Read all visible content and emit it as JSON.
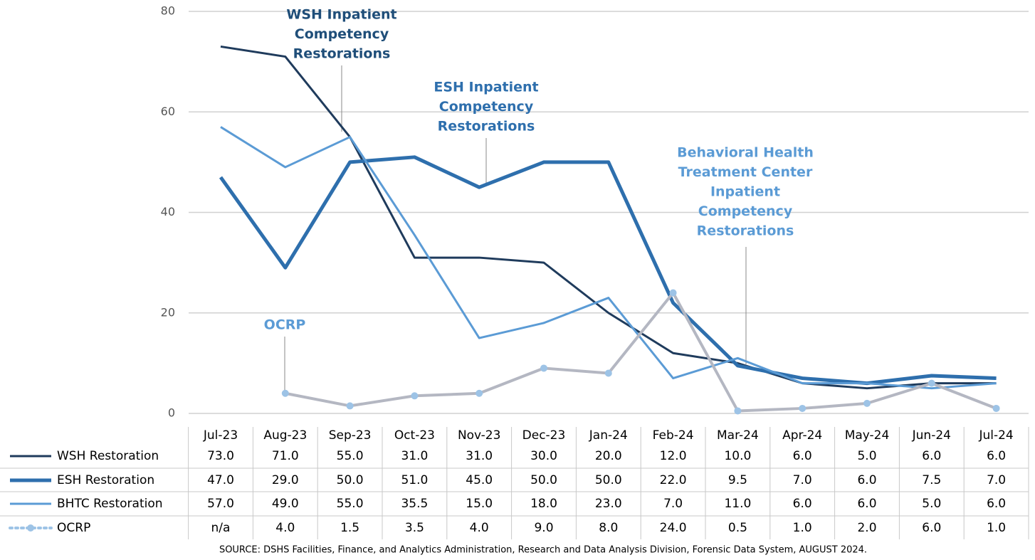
{
  "chart_data": {
    "type": "line",
    "source": "SOURCE: DSHS Facilities, Finance, and Analytics Administration, Research and Data Analysis Division, Forensic Data System, AUGUST 2024.",
    "categories": [
      "Jul-23",
      "Aug-23",
      "Sep-23",
      "Oct-23",
      "Nov-23",
      "Dec-23",
      "Jan-24",
      "Feb-24",
      "Mar-24",
      "Apr-24",
      "May-24",
      "Jun-24",
      "Jul-24"
    ],
    "ylim": [
      0,
      80
    ],
    "yticks": [
      0,
      20,
      40,
      60,
      80
    ],
    "grid": true,
    "series": [
      {
        "name": "WSH Restoration",
        "color": "#1f3b5c",
        "width": 3,
        "values": [
          73,
          71,
          55,
          31,
          31,
          30,
          20,
          12,
          10,
          6,
          5,
          6,
          6
        ],
        "value_labels": [
          "73.0",
          "71.0",
          "55.0",
          "31.0",
          "31.0",
          "30.0",
          "20.0",
          "12.0",
          "10.0",
          "6.0",
          "5.0",
          "6.0",
          "6.0"
        ]
      },
      {
        "name": "ESH Restoration",
        "color": "#2e6fad",
        "width": 5,
        "values": [
          47,
          29,
          50,
          51,
          45,
          50,
          50,
          22,
          9.5,
          7,
          6,
          7.5,
          7
        ],
        "value_labels": [
          "47.0",
          "29.0",
          "50.0",
          "51.0",
          "45.0",
          "50.0",
          "50.0",
          "22.0",
          "9.5",
          "7.0",
          "6.0",
          "7.5",
          "7.0"
        ]
      },
      {
        "name": "BHTC Restoration",
        "color": "#5b9bd5",
        "width": 3,
        "values": [
          57,
          49,
          55,
          35.5,
          15,
          18,
          23,
          7,
          11,
          6,
          6,
          5,
          6
        ],
        "value_labels": [
          "57.0",
          "49.0",
          "55.0",
          "35.5",
          "15.0",
          "18.0",
          "23.0",
          "7.0",
          "11.0",
          "6.0",
          "6.0",
          "5.0",
          "6.0"
        ]
      },
      {
        "name": "OCRP",
        "color": "#b4b7c2",
        "marker_color": "#9dc3e6",
        "width": 4,
        "values": [
          null,
          4,
          1.5,
          3.5,
          4,
          9,
          8,
          24,
          0.5,
          1,
          2,
          6,
          1
        ],
        "value_labels": [
          "n/a",
          "4.0",
          "1.5",
          "3.5",
          "4.0",
          "9.0",
          "8.0",
          "24.0",
          "0.5",
          "1.0",
          "2.0",
          "6.0",
          "1.0"
        ]
      }
    ],
    "annotations": [
      {
        "lines": [
          "WSH Inpatient",
          "Competency",
          "Restorations"
        ],
        "color": "#1f4e79"
      },
      {
        "lines": [
          "ESH Inpatient",
          "Competency",
          "Restorations"
        ],
        "color": "#2e6fad"
      },
      {
        "lines": [
          "Behavioral Health",
          "Treatment Center",
          "Inpatient",
          "Competency",
          "Restorations"
        ],
        "color": "#5b9bd5"
      },
      {
        "lines": [
          "OCRP"
        ],
        "color": "#5b9bd5"
      }
    ]
  }
}
